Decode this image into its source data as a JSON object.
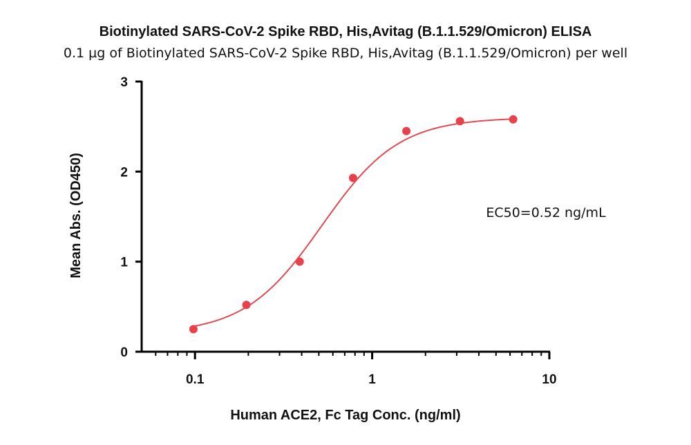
{
  "chart_data": {
    "type": "scatter",
    "title": "Biotinylated SARS-CoV-2 Spike RBD, His,Avitag (B.1.1.529/Omicron) ELISA",
    "subtitle": "0.1 µg of Biotinylated SARS-CoV-2 Spike RBD, His,Avitag (B.1.1.529/Omicron) per well",
    "xlabel": "Human ACE2, Fc Tag Conc. (ng/ml)",
    "ylabel": "Mean Abs. (OD450)",
    "xscale": "log",
    "xlim": [
      0.05,
      10
    ],
    "ylim": [
      0,
      3
    ],
    "x_ticks": [
      0.1,
      1,
      10
    ],
    "x_tick_labels": [
      "0.1",
      "1",
      "10"
    ],
    "y_ticks": [
      0,
      1,
      2,
      3
    ],
    "y_tick_labels": [
      "0",
      "1",
      "2",
      "3"
    ],
    "grid": false,
    "series": [
      {
        "color": "#e8414b",
        "x": [
          0.098,
          0.195,
          0.39,
          0.78,
          1.56,
          3.13,
          6.25
        ],
        "y": [
          0.25,
          0.52,
          1.0,
          1.93,
          2.45,
          2.56,
          2.58
        ]
      }
    ],
    "fit": {
      "model": "4PL",
      "bottom": 0.2,
      "top": 2.6,
      "ec50": 0.52,
      "hill": 2.0,
      "color": "#e04a50"
    },
    "annotations": [
      {
        "text": "EC50=0.52 ng/mL"
      }
    ]
  }
}
